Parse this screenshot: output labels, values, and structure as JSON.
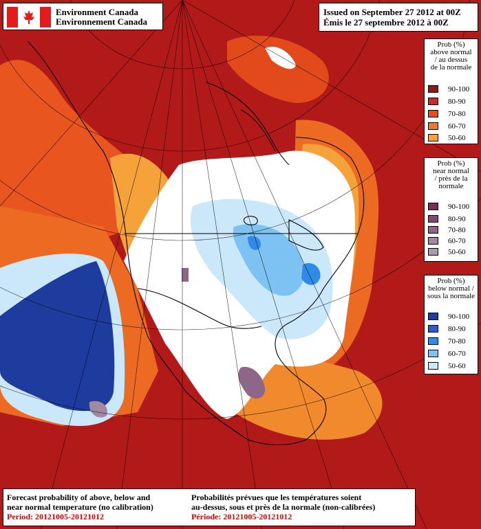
{
  "header": {
    "agency_en": "Environment Canada",
    "agency_fr": "Environnement Canada",
    "issued_en": "Issued on September 27 2012 at 00Z",
    "issued_fr": "Émis le 27 septembre 2012 à 00Z"
  },
  "legends": {
    "above": {
      "title": [
        "Prob (%)",
        "above normal",
        "/ au dessus",
        "de la normale"
      ],
      "items": [
        {
          "label": "90-100",
          "color": "#9b1414"
        },
        {
          "label": "80-90",
          "color": "#d42424"
        },
        {
          "label": "70-80",
          "color": "#ea4a1c"
        },
        {
          "label": "60-70",
          "color": "#f07a20"
        },
        {
          "label": "50-60",
          "color": "#f5a23a"
        }
      ]
    },
    "near": {
      "title": [
        "Prob (%)",
        "near normal",
        "/ près de la",
        "normale"
      ],
      "items": [
        {
          "label": "90-100",
          "color": "#7a3055"
        },
        {
          "label": "80-90",
          "color": "#7e4a72"
        },
        {
          "label": "70-80",
          "color": "#8d6688"
        },
        {
          "label": "60-70",
          "color": "#a08aa2"
        },
        {
          "label": "50-60",
          "color": "#a99aad"
        }
      ]
    },
    "below": {
      "title": [
        "Prob (%)",
        "below normal /",
        "sous la normale"
      ],
      "items": [
        {
          "label": "90-100",
          "color": "#1e3c9e"
        },
        {
          "label": "80-90",
          "color": "#2a5fcb"
        },
        {
          "label": "70-80",
          "color": "#2f8be6"
        },
        {
          "label": "60-70",
          "color": "#7cc2f2"
        },
        {
          "label": "50-60",
          "color": "#cbe8fa"
        }
      ]
    }
  },
  "footer": {
    "en_line1": "Forecast probability of above, below and",
    "en_line2": "near normal temperature (no calibration)",
    "en_period": "Period: 20121005-20121012",
    "fr_line1": "Probabilités prévues que les températures soient",
    "fr_line2": "au-dessus, sous et près de la normale (non-calibrées)",
    "fr_period": "Période: 20121005-20121012"
  }
}
